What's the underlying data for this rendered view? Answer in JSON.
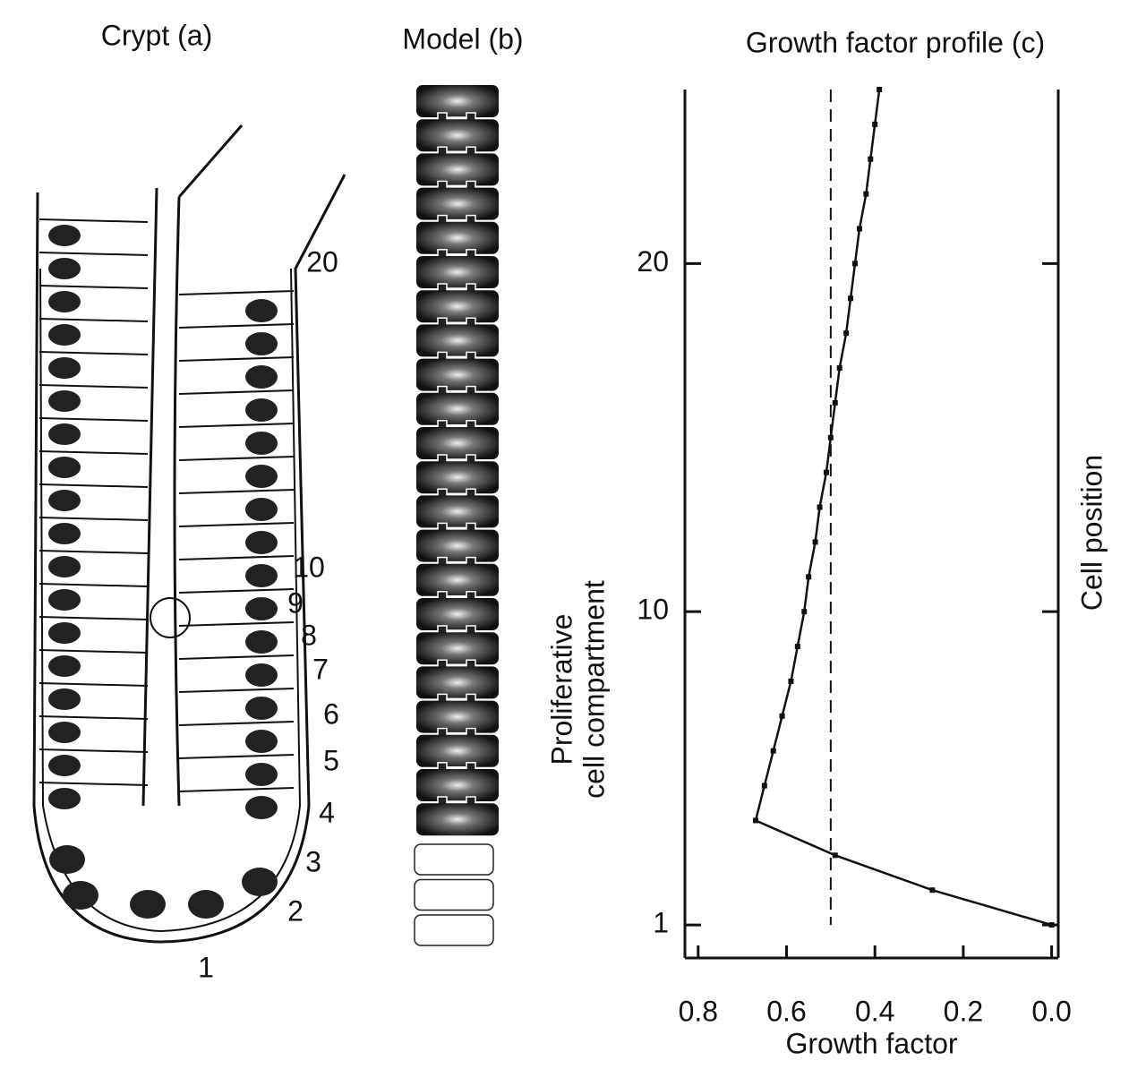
{
  "crypt": {
    "title": "Crypt (a)",
    "labels": [
      "1",
      "2",
      "3",
      "4",
      "5",
      "6",
      "7",
      "8",
      "9",
      "10",
      "20"
    ]
  },
  "model": {
    "title": "Model (b)"
  },
  "chart_data": {
    "type": "line",
    "title": "Growth factor profile (c)",
    "x_label": "Growth factor",
    "y_label": "Cell position",
    "annotation": [
      "Proliferative",
      "cell compartment"
    ],
    "y": [
      1,
      2,
      3,
      4,
      5,
      6,
      7,
      8,
      9,
      10,
      11,
      12,
      13,
      14,
      15,
      16,
      17,
      18,
      19,
      20,
      21,
      22,
      23,
      24,
      25
    ],
    "series": [
      {
        "color": "#111111",
        "values": [
          0.0,
          0.27,
          0.49,
          0.67,
          0.65,
          0.63,
          0.61,
          0.59,
          0.575,
          0.56,
          0.55,
          0.535,
          0.525,
          0.51,
          0.5,
          0.49,
          0.48,
          0.465,
          0.455,
          0.445,
          0.435,
          0.42,
          0.41,
          0.4,
          0.39
        ]
      }
    ],
    "reference_x": 0.5,
    "xlim": [
      0.83,
      -0.015
    ],
    "xticks": [
      0.8,
      0.6,
      0.4,
      0.2,
      {
        "value": 0,
        "label": "0.0"
      }
    ],
    "ylim": [
      0.05,
      25
    ],
    "yticks": [
      1,
      10,
      20
    ]
  }
}
